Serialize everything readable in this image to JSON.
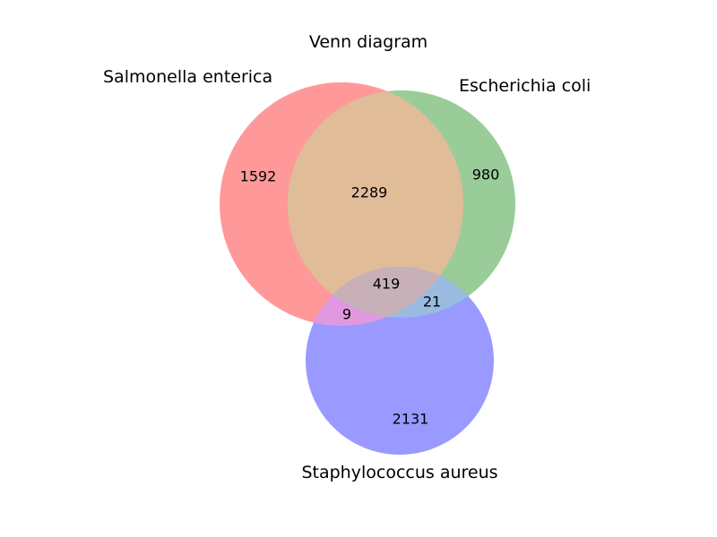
{
  "title": "Venn diagram",
  "sets": [
    {
      "name": "Salmonella enterica",
      "color": "#ff0000"
    },
    {
      "name": "Escherichia coli",
      "color": "#008000"
    },
    {
      "name": "Staphylococcus aureus",
      "color": "#0000ff"
    }
  ],
  "regions": {
    "only_salmonella": "1592",
    "only_ecoli": "980",
    "only_staph": "2131",
    "salmonella_ecoli": "2289",
    "salmonella_staph": "9",
    "ecoli_staph": "21",
    "all_three": "419"
  },
  "fill_opacity": 0.4
}
